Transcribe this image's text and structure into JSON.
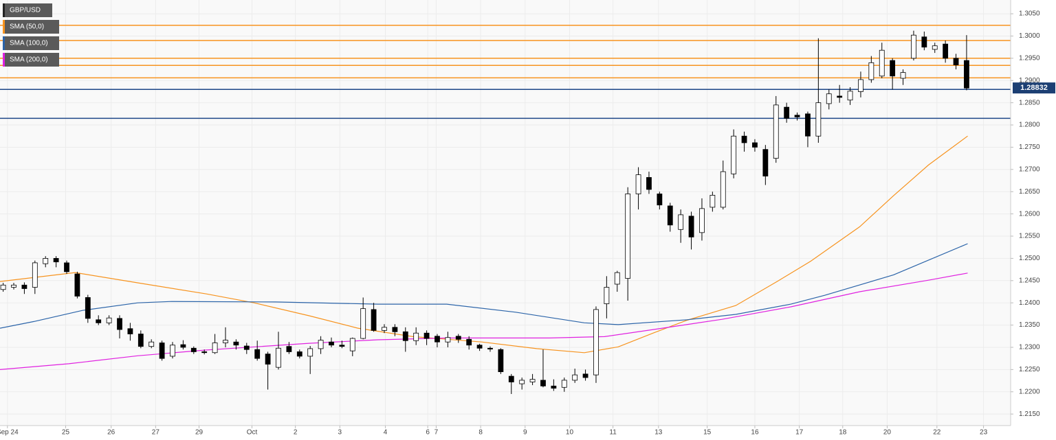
{
  "chart_data": {
    "type": "candlestick",
    "name": "GBP/USD",
    "up_color": "#ffffff",
    "down_color": "#000000",
    "ohlc": {
      "open": [
        1.243,
        1.2435,
        1.244,
        1.2435,
        1.2488,
        1.25,
        1.249,
        1.2465,
        1.2412,
        1.2362,
        1.2355,
        1.2365,
        1.2342,
        1.233,
        1.2302,
        1.231,
        1.228,
        1.2306,
        1.2298,
        1.229,
        1.2288,
        1.231,
        1.2312,
        1.2303,
        1.2295,
        1.2285,
        1.2255,
        1.2302,
        1.229,
        1.228,
        1.2297,
        1.2312,
        1.2305,
        1.2292,
        1.232,
        1.2385,
        1.2338,
        1.2345,
        1.2335,
        1.2315,
        1.2332,
        1.2325,
        1.2312,
        1.2325,
        1.2318,
        1.2305,
        1.2298,
        1.2295,
        1.2235,
        1.2218,
        1.2222,
        1.2226,
        1.2213,
        1.221,
        1.2226,
        1.224,
        1.2238,
        1.2398,
        1.2442,
        1.2455,
        1.2645,
        1.2682,
        1.2645,
        1.2618,
        1.2565,
        1.2595,
        1.2558,
        1.2615,
        1.2615,
        1.269,
        1.2775,
        1.276,
        1.2745,
        1.2725,
        1.284,
        1.2822,
        1.2825,
        1.2775,
        1.2848,
        1.2865,
        1.2856,
        1.2875,
        1.2902,
        1.291,
        1.2945,
        1.2905,
        1.295,
        1.2998,
        1.297,
        1.2982,
        1.295,
        1.2945
      ],
      "high": [
        1.2445,
        1.2445,
        1.2446,
        1.2495,
        1.2505,
        1.2505,
        1.2495,
        1.247,
        1.2418,
        1.2372,
        1.2372,
        1.2372,
        1.2355,
        1.2338,
        1.2318,
        1.2315,
        1.2312,
        1.2316,
        1.2302,
        1.2295,
        1.233,
        1.2345,
        1.2318,
        1.231,
        1.2315,
        1.229,
        1.2335,
        1.2312,
        1.2295,
        1.2303,
        1.2325,
        1.2322,
        1.2315,
        1.2322,
        1.2412,
        1.24,
        1.2352,
        1.2352,
        1.2345,
        1.2345,
        1.2338,
        1.233,
        1.2335,
        1.233,
        1.2325,
        1.2308,
        1.2302,
        1.2298,
        1.224,
        1.2232,
        1.224,
        1.2295,
        1.2228,
        1.2232,
        1.2252,
        1.225,
        1.2392,
        1.246,
        1.2472,
        1.266,
        1.2705,
        1.2695,
        1.265,
        1.2625,
        1.261,
        1.2605,
        1.2635,
        1.265,
        1.272,
        1.279,
        1.2785,
        1.2768,
        1.2755,
        1.2865,
        1.285,
        1.2828,
        1.283,
        1.2995,
        1.288,
        1.289,
        1.2885,
        1.292,
        1.2955,
        1.2985,
        1.295,
        1.2925,
        1.3012,
        1.301,
        1.2985,
        1.299,
        1.296,
        1.3002
      ],
      "low": [
        1.2425,
        1.243,
        1.242,
        1.242,
        1.248,
        1.248,
        1.2465,
        1.241,
        1.2355,
        1.235,
        1.235,
        1.232,
        1.2315,
        1.2298,
        1.2298,
        1.227,
        1.2275,
        1.2295,
        1.2285,
        1.2284,
        1.2285,
        1.23,
        1.2295,
        1.2285,
        1.227,
        1.2205,
        1.225,
        1.2285,
        1.2275,
        1.224,
        1.2285,
        1.23,
        1.2298,
        1.228,
        1.2318,
        1.2335,
        1.2332,
        1.2325,
        1.229,
        1.2305,
        1.2305,
        1.23,
        1.23,
        1.231,
        1.2295,
        1.2292,
        1.229,
        1.224,
        1.2195,
        1.2205,
        1.2215,
        1.221,
        1.2202,
        1.22,
        1.222,
        1.2225,
        1.222,
        1.2365,
        1.2425,
        1.2405,
        1.261,
        1.2645,
        1.261,
        1.256,
        1.2535,
        1.252,
        1.254,
        1.2605,
        1.261,
        1.268,
        1.274,
        1.274,
        1.2665,
        1.2715,
        1.2805,
        1.281,
        1.275,
        1.276,
        1.2835,
        1.285,
        1.2845,
        1.2862,
        1.2895,
        1.2905,
        1.288,
        1.289,
        1.2945,
        1.2968,
        1.2962,
        1.294,
        1.2925,
        1.2878
      ],
      "close": [
        1.244,
        1.244,
        1.2432,
        1.249,
        1.25,
        1.2492,
        1.247,
        1.2415,
        1.2365,
        1.2355,
        1.2366,
        1.234,
        1.233,
        1.2302,
        1.2312,
        1.2275,
        1.2305,
        1.23,
        1.229,
        1.2288,
        1.231,
        1.2316,
        1.2305,
        1.2295,
        1.2275,
        1.2262,
        1.2298,
        1.229,
        1.228,
        1.2297,
        1.2316,
        1.2305,
        1.2302,
        1.232,
        1.2387,
        1.2338,
        1.2345,
        1.2335,
        1.2315,
        1.2332,
        1.232,
        1.2312,
        1.2322,
        1.2318,
        1.2305,
        1.2298,
        1.2296,
        1.2245,
        1.2222,
        1.2226,
        1.2228,
        1.2213,
        1.2208,
        1.2226,
        1.2238,
        1.2232,
        1.2385,
        1.2435,
        1.2468,
        1.2645,
        1.2688,
        1.2655,
        1.262,
        1.2575,
        1.2598,
        1.2548,
        1.2612,
        1.2642,
        1.2695,
        1.2775,
        1.276,
        1.275,
        1.2685,
        1.2845,
        1.2815,
        1.2818,
        1.2775,
        1.285,
        1.287,
        1.2862,
        1.2876,
        1.2902,
        1.294,
        1.2968,
        1.291,
        1.2918,
        1.3002,
        1.2975,
        1.2978,
        1.295,
        1.2935,
        1.2883
      ]
    },
    "series": [
      {
        "name": "SMA (50,0)",
        "color": "#f7931e",
        "x": [
          -0.3,
          6.8,
          12.7,
          19.2,
          23.7,
          28.9,
          33.5,
          38.7,
          45.2,
          50.4,
          54.9,
          58.1,
          61.4,
          64.6,
          69.2,
          73.1,
          76.3,
          80.9,
          84.1,
          87.4,
          91.1
        ],
        "values": [
          1.2448,
          1.2468,
          1.2445,
          1.242,
          1.24,
          1.2371,
          1.2343,
          1.2324,
          1.2312,
          1.2297,
          1.2288,
          1.2301,
          1.2332,
          1.2361,
          1.2394,
          1.2448,
          1.2494,
          1.2571,
          1.2641,
          1.271,
          1.2775
        ]
      },
      {
        "name": "SMA (100,0)",
        "color": "#2a63a8",
        "x": [
          -0.3,
          2.9,
          7.5,
          12.7,
          15.9,
          25.7,
          35.4,
          41.9,
          48.4,
          54.9,
          58.1,
          64.6,
          69.2,
          74.4,
          77.6,
          84.1,
          91.1
        ],
        "values": [
          1.2343,
          1.2358,
          1.2383,
          1.24,
          1.2403,
          1.2402,
          1.2397,
          1.2397,
          1.2379,
          1.2355,
          1.2351,
          1.2362,
          1.2374,
          1.2397,
          1.2417,
          1.2463,
          1.2533
        ]
      },
      {
        "name": "SMA (200,0)",
        "color": "#e020e0",
        "x": [
          -0.3,
          6.2,
          12.7,
          19.2,
          28.9,
          35.4,
          41.9,
          51.6,
          56.8,
          61.4,
          67.9,
          74.4,
          80.9,
          87.4,
          91.1
        ],
        "values": [
          1.225,
          1.2263,
          1.2281,
          1.2294,
          1.2309,
          1.2317,
          1.2321,
          1.2321,
          1.2324,
          1.234,
          1.2363,
          1.2391,
          1.2425,
          1.2451,
          1.2467
        ]
      }
    ],
    "levels": [
      {
        "value": 1.3024,
        "color": "#f7931e"
      },
      {
        "value": 1.299,
        "color": "#f7931e"
      },
      {
        "value": 1.295,
        "color": "#f7931e"
      },
      {
        "value": 1.2934,
        "color": "#f7931e"
      },
      {
        "value": 1.2906,
        "color": "#f7931e"
      },
      {
        "value": 1.288,
        "color": "#1c4587"
      },
      {
        "value": 1.2815,
        "color": "#1c4587"
      }
    ],
    "last_price": {
      "value": 1.28832,
      "label": "1.28832"
    },
    "xlim": [
      -0.3,
      95.16
    ],
    "xticks": [
      {
        "value": 0.4,
        "label": "Sep 24"
      },
      {
        "value": 5.9,
        "label": "25"
      },
      {
        "value": 10.2,
        "label": "26"
      },
      {
        "value": 14.4,
        "label": "27"
      },
      {
        "value": 18.5,
        "label": "29"
      },
      {
        "value": 23.5,
        "label": "Oct"
      },
      {
        "value": 27.6,
        "label": "2"
      },
      {
        "value": 31.8,
        "label": "3"
      },
      {
        "value": 36.1,
        "label": "4"
      },
      {
        "value": 40.1,
        "label": "6"
      },
      {
        "value": 40.9,
        "label": "7"
      },
      {
        "value": 45.1,
        "label": "8"
      },
      {
        "value": 49.3,
        "label": "9"
      },
      {
        "value": 53.5,
        "label": "10"
      },
      {
        "value": 57.6,
        "label": "11"
      },
      {
        "value": 61.9,
        "label": "13"
      },
      {
        "value": 66.5,
        "label": "15"
      },
      {
        "value": 71.0,
        "label": "16"
      },
      {
        "value": 75.2,
        "label": "17"
      },
      {
        "value": 79.3,
        "label": "18"
      },
      {
        "value": 83.5,
        "label": "20"
      },
      {
        "value": 88.2,
        "label": "22"
      },
      {
        "value": 92.6,
        "label": "23"
      }
    ],
    "ylim": [
      1.2124,
      1.3081
    ],
    "yticks": [
      {
        "value": 1.215,
        "label": "1.2150"
      },
      {
        "value": 1.22,
        "label": "1.2200"
      },
      {
        "value": 1.225,
        "label": "1.2250"
      },
      {
        "value": 1.23,
        "label": "1.2300"
      },
      {
        "value": 1.235,
        "label": "1.2350"
      },
      {
        "value": 1.24,
        "label": "1.2400"
      },
      {
        "value": 1.245,
        "label": "1.2450"
      },
      {
        "value": 1.25,
        "label": "1.2500"
      },
      {
        "value": 1.255,
        "label": "1.2550"
      },
      {
        "value": 1.26,
        "label": "1.2600"
      },
      {
        "value": 1.265,
        "label": "1.2650"
      },
      {
        "value": 1.27,
        "label": "1.2700"
      },
      {
        "value": 1.275,
        "label": "1.2750"
      },
      {
        "value": 1.28,
        "label": "1.2800"
      },
      {
        "value": 1.285,
        "label": "1.2850"
      },
      {
        "value": 1.29,
        "label": "1.2900"
      },
      {
        "value": 1.295,
        "label": "1.2950"
      },
      {
        "value": 1.3,
        "label": "1.3000"
      },
      {
        "value": 1.305,
        "label": "1.3050"
      }
    ],
    "grid": true
  }
}
